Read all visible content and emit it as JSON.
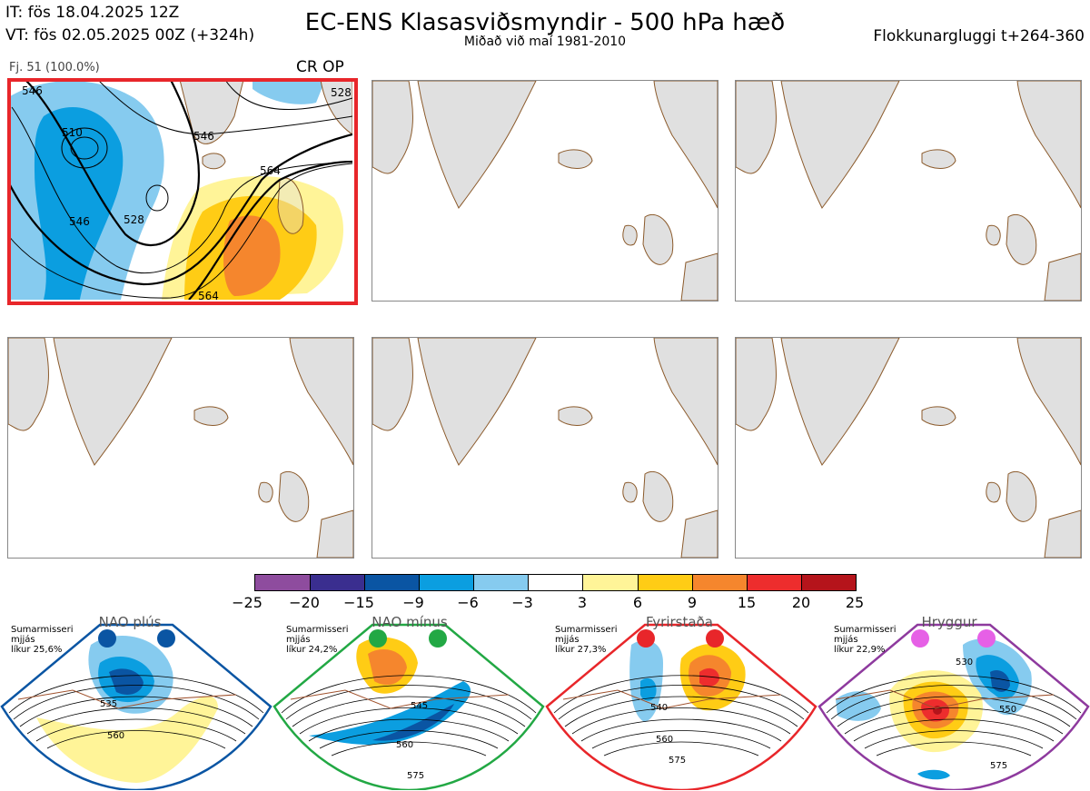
{
  "header": {
    "it_line": "IT: fös 18.04.2025 12Z",
    "vt_line": "VT: fös 02.05.2025 00Z  (+324h)",
    "title": "EC-ENS Klasasviðsmyndir - 500 hPa hæð",
    "subtitle": "Miðað við maí 1981-2010",
    "window_label": "Flokkunargluggi t+264-360"
  },
  "cluster_panel": {
    "label": "Fj. 51 (100.0%)",
    "regime_tag": "CR OP",
    "contour_labels": [
      "546",
      "510",
      "528",
      "546",
      "564",
      "546",
      "564",
      "528"
    ]
  },
  "empty_panels": 5,
  "colorbar": {
    "ticks": [
      "−25",
      "−20",
      "−15",
      "−9",
      "−6",
      "−3",
      "3",
      "6",
      "9",
      "15",
      "20",
      "25"
    ],
    "colors": [
      "#8e4c9e",
      "#3a2e8f",
      "#0a55a3",
      "#0b9ee0",
      "#86cbef",
      "#ffffff",
      "#fff498",
      "#ffcc15",
      "#f5862d",
      "#ed2d2d",
      "#b5141b"
    ]
  },
  "regimes": [
    {
      "name": "NAO plús",
      "note": "Sumarmisseri\nmjjás\nlíkur 25,6%",
      "color": "#0a55a3",
      "labels": [
        "535",
        "560"
      ]
    },
    {
      "name": "NAO mínus",
      "note": "Sumarmisseri\nmjjás\nlíkur 24,2%",
      "color": "#22a844",
      "labels": [
        "545",
        "560",
        "575"
      ]
    },
    {
      "name": "Fyrirstaða",
      "note": "Sumarmisseri\nmjjás\nlíkur 27,3%",
      "color": "#e8262a",
      "labels": [
        "540",
        "560",
        "575"
      ]
    },
    {
      "name": "Hryggur",
      "note": "Sumarmisseri\nmjjás\nlíkur 22,9%",
      "color": "#e660e6",
      "labels": [
        "530",
        "550",
        "575"
      ]
    }
  ]
}
